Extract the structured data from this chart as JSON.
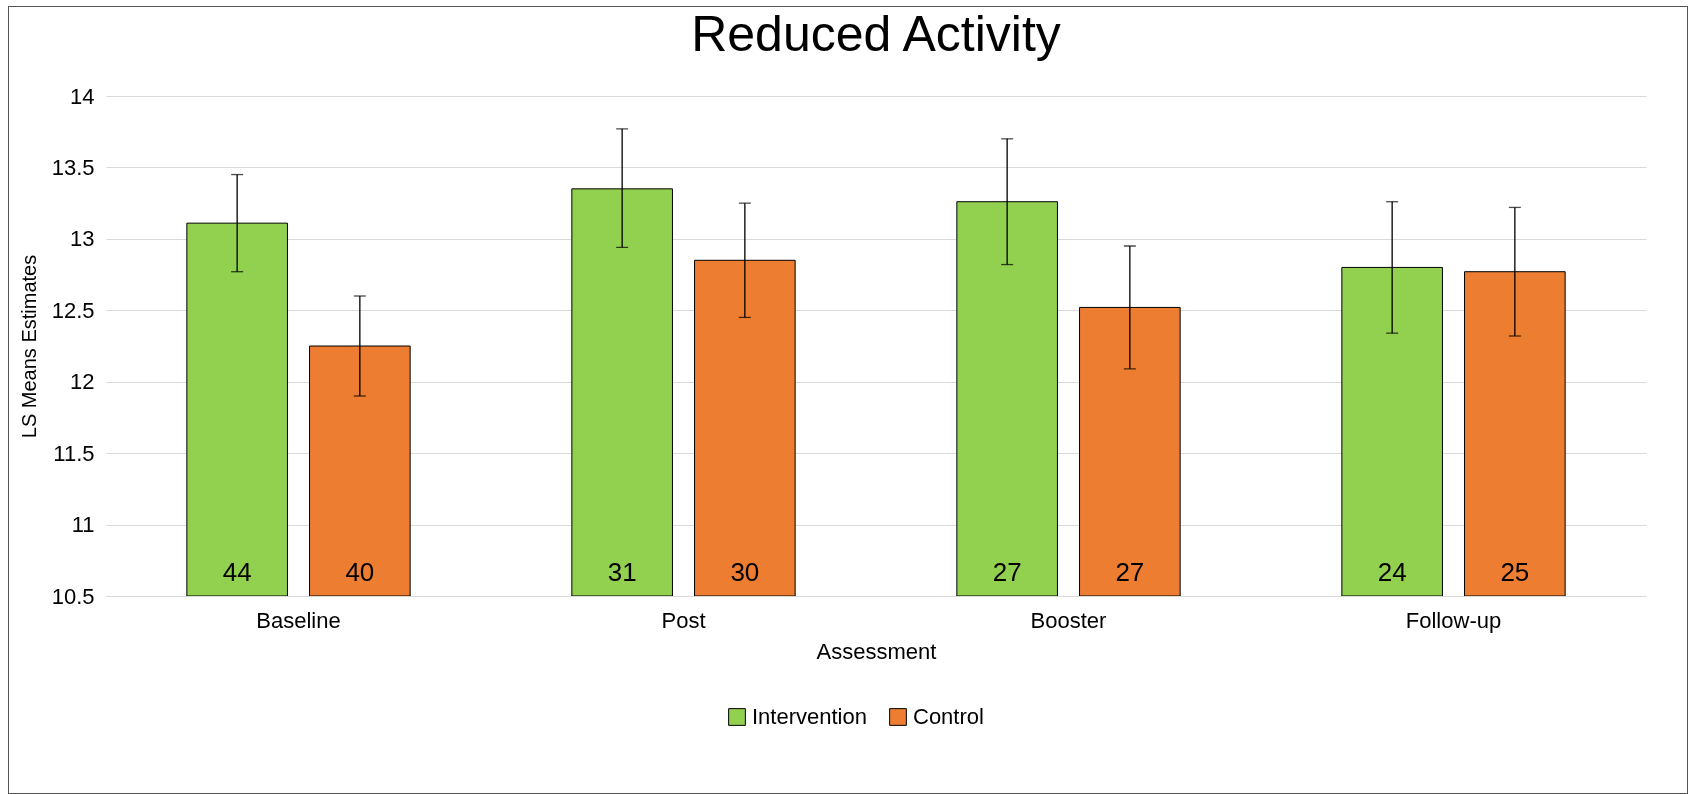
{
  "chart_data": {
    "type": "bar",
    "title": "Reduced Activity",
    "xlabel": "Assessment",
    "ylabel": "LS Means Estimates",
    "categories": [
      "Baseline",
      "Post",
      "Booster",
      "Follow-up"
    ],
    "series": [
      {
        "name": "Intervention",
        "color": "#92d050",
        "values": [
          13.11,
          13.35,
          13.26,
          12.8
        ],
        "errors": [
          [
            12.77,
            13.45
          ],
          [
            12.94,
            13.77
          ],
          [
            12.82,
            13.7
          ],
          [
            12.34,
            13.26
          ]
        ]
      },
      {
        "name": "Control",
        "color": "#ed7d31",
        "values": [
          12.25,
          12.85,
          12.52,
          12.77
        ],
        "errors": [
          [
            11.9,
            12.6
          ],
          [
            12.45,
            13.25
          ],
          [
            12.09,
            12.95
          ],
          [
            12.32,
            13.22
          ]
        ]
      }
    ],
    "annotations": [
      "44",
      "40",
      "31",
      "30",
      "27",
      "27",
      "24",
      "25"
    ],
    "ylim": [
      10.5,
      14
    ],
    "yticks": [
      10.5,
      11,
      11.5,
      12,
      12.5,
      13,
      13.5,
      14
    ],
    "grid": "y",
    "legend": "bottom"
  }
}
